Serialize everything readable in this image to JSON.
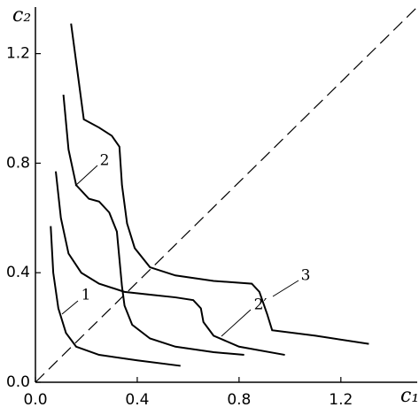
{
  "chart_data": {
    "type": "line",
    "x_label": "c₁",
    "y_label": "c₂",
    "xlim": [
      0,
      1.5
    ],
    "ylim": [
      0,
      1.37
    ],
    "xticks": [
      {
        "value": 0,
        "label": "0.0"
      },
      0.4,
      0.8,
      1.2
    ],
    "yticks": [
      {
        "value": 0,
        "label": "0.0"
      },
      0.4,
      0.8,
      1.2
    ],
    "diagonal": true,
    "series": [
      {
        "name": "1",
        "color": "#000000",
        "x": [
          0.06,
          0.07,
          0.09,
          0.12,
          0.16,
          0.25,
          0.4,
          0.57
        ],
        "values": [
          0.57,
          0.4,
          0.27,
          0.18,
          0.13,
          0.1,
          0.08,
          0.06
        ]
      },
      {
        "name": "2",
        "color": "#000000",
        "x": [
          0.11,
          0.13,
          0.16,
          0.21,
          0.25,
          0.29,
          0.32,
          0.33,
          0.34,
          0.35,
          0.38,
          0.45,
          0.55,
          0.7,
          0.82
        ],
        "values": [
          1.05,
          0.85,
          0.72,
          0.67,
          0.66,
          0.62,
          0.55,
          0.45,
          0.35,
          0.28,
          0.21,
          0.16,
          0.13,
          0.11,
          0.1
        ]
      },
      {
        "name": "2′",
        "color": "#000000",
        "x": [
          0.08,
          0.1,
          0.13,
          0.18,
          0.25,
          0.35,
          0.45,
          0.55,
          0.62,
          0.65,
          0.66,
          0.7,
          0.8,
          0.98
        ],
        "values": [
          0.77,
          0.6,
          0.47,
          0.4,
          0.36,
          0.33,
          0.32,
          0.31,
          0.3,
          0.27,
          0.22,
          0.17,
          0.13,
          0.1
        ]
      },
      {
        "name": "3",
        "color": "#000000",
        "x": [
          0.14,
          0.17,
          0.19,
          0.25,
          0.3,
          0.33,
          0.34,
          0.36,
          0.39,
          0.45,
          0.55,
          0.7,
          0.85,
          0.88,
          0.91,
          0.93,
          1.1,
          1.31
        ],
        "values": [
          1.31,
          1.1,
          0.96,
          0.93,
          0.9,
          0.86,
          0.72,
          0.58,
          0.49,
          0.42,
          0.39,
          0.37,
          0.36,
          0.33,
          0.25,
          0.19,
          0.17,
          0.14
        ]
      }
    ]
  }
}
